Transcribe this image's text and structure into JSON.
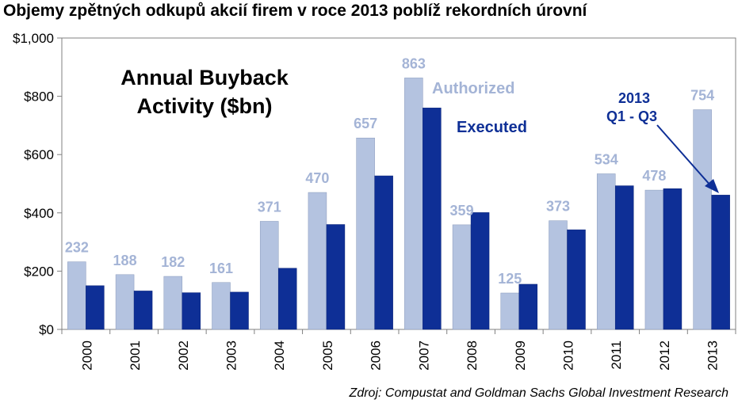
{
  "page_title": "Objemy zpětných odkupů akcií firem v roce 2013 poblíž rekordních úrovní",
  "source_note": "Zdroj: Compustat and Goldman Sachs Global Investment Research",
  "colors": {
    "authorized": "#b4c3e0",
    "executed": "#0e2f96",
    "authorized_label": "#a4b4d6",
    "executed_label": "#0e2f96"
  },
  "chart_data": {
    "type": "bar",
    "title": "Annual Buyback Activity ($bn)",
    "title_lines": [
      "Annual Buyback",
      "Activity ($bn)"
    ],
    "categories": [
      "2000",
      "2001",
      "2002",
      "2003",
      "2004",
      "2005",
      "2006",
      "2007",
      "2008",
      "2009",
      "2010",
      "2011",
      "2012",
      "2013"
    ],
    "series": [
      {
        "name": "Authorized",
        "values": [
          232,
          188,
          182,
          161,
          371,
          470,
          657,
          863,
          359,
          125,
          373,
          534,
          478,
          754
        ]
      },
      {
        "name": "Executed",
        "values": [
          150,
          132,
          126,
          128,
          210,
          360,
          527,
          760,
          401,
          155,
          342,
          493,
          483,
          461
        ]
      }
    ],
    "data_labels": [
      "232",
      "188",
      "182",
      "161",
      "371",
      "470",
      "657",
      "863",
      "359",
      "125",
      "373",
      "534",
      "478",
      "754"
    ],
    "yticks": [
      "$0",
      "$200",
      "$400",
      "$600",
      "$800",
      "$1,000"
    ],
    "ylim": [
      0,
      1000
    ],
    "annotation": {
      "lines": [
        "2013",
        "Q1 - Q3"
      ]
    },
    "grid": false,
    "legend": "inline labels, top-center"
  }
}
